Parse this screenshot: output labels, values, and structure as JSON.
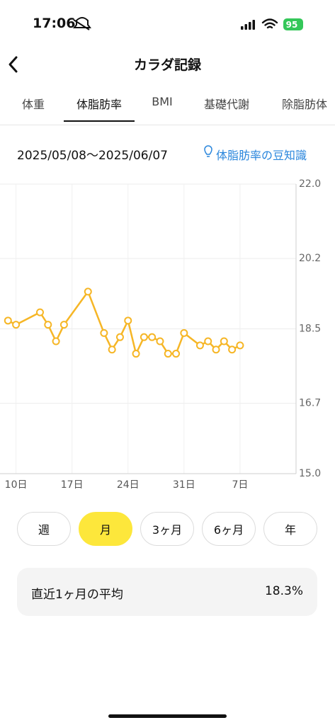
{
  "status_bar": {
    "time": "17:06",
    "battery": "95"
  },
  "header": {
    "title": "カラダ記録"
  },
  "tabs": {
    "items": [
      "体重",
      "体脂肪率",
      "BMI",
      "基礎代謝",
      "除脂肪体"
    ],
    "active": 1
  },
  "date_range": "2025/05/08〜2025/06/07",
  "tip_link": "体脂肪率の豆知識",
  "chart_data": {
    "type": "line",
    "x": [
      9,
      10,
      13,
      14,
      15,
      16,
      19,
      21,
      22,
      23,
      24,
      25,
      26,
      27,
      28,
      29,
      30,
      31,
      33,
      34,
      35,
      36,
      37,
      38
    ],
    "values": [
      18.7,
      18.6,
      18.9,
      18.6,
      18.2,
      18.6,
      19.4,
      18.4,
      18.0,
      18.3,
      18.7,
      17.9,
      18.3,
      18.3,
      18.2,
      17.9,
      17.9,
      18.4,
      18.1,
      18.2,
      18.0,
      18.2,
      18.0,
      18.1
    ],
    "color": "#f6b626",
    "xlim": [
      8,
      45
    ],
    "xticks": [
      {
        "value": 10,
        "label": "10日"
      },
      {
        "value": 17,
        "label": "17日"
      },
      {
        "value": 24,
        "label": "24日"
      },
      {
        "value": 31,
        "label": "31日"
      },
      {
        "value": 38,
        "label": "7日"
      }
    ],
    "ylim": [
      15,
      22
    ],
    "yticks": [
      {
        "value": 15,
        "label": "15.0"
      },
      16.7,
      18.5,
      20.2,
      {
        "value": 22,
        "label": "22.0"
      }
    ],
    "grid": true
  },
  "periods": {
    "items": [
      "週",
      "月",
      "3ヶ月",
      "6ヶ月",
      "年"
    ],
    "active": 1
  },
  "summary": {
    "label": "直近1ヶ月の平均",
    "value": "18.3%"
  }
}
